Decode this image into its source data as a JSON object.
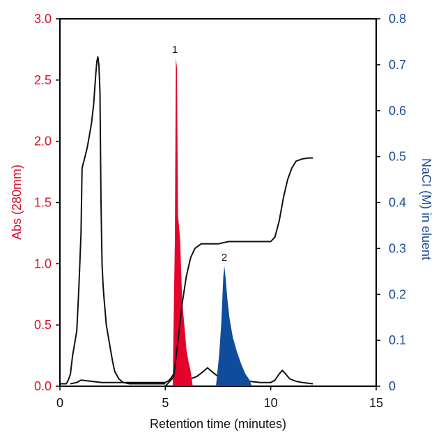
{
  "chart_data": {
    "type": "line",
    "xlabel": "Retention time (minutes)",
    "ylabel_left": "Abs (280mm)",
    "ylabel_right": "NaCI (M) in eluent",
    "xlim": [
      0,
      15
    ],
    "ylim_left": [
      0,
      3.0
    ],
    "ylim_right": [
      0,
      0.8
    ],
    "x_ticks": [
      "0",
      "5",
      "10",
      "15"
    ],
    "y_left_ticks": [
      "0.0",
      "0.5",
      "1.0",
      "1.5",
      "2.0",
      "2.5",
      "3.0"
    ],
    "y_right_ticks": [
      "0",
      "0.1",
      "0.2",
      "0.3",
      "0.4",
      "0.5",
      "0.6",
      "0.7",
      "0.8"
    ],
    "colors": {
      "left_axis": "#d7102b",
      "right_axis": "#1a4e96",
      "trace": "#111111",
      "peak1": "#e4032b",
      "peak2": "#0f4c9c"
    },
    "grid": false,
    "series": [
      {
        "axis": "left",
        "style": "line",
        "x": [
          0,
          0.3,
          0.4,
          0.5,
          0.6,
          0.8,
          0.9,
          1.0,
          1.05,
          1.2,
          1.3,
          1.4,
          1.5,
          1.6,
          1.65,
          1.7,
          1.75,
          1.8,
          1.85,
          1.9,
          1.95,
          2.0,
          2.05,
          2.1,
          2.2,
          2.3,
          2.4,
          2.5,
          2.6,
          2.8,
          3.0,
          3.3,
          3.6,
          4.0,
          5.0
        ],
        "y": [
          0.02,
          0.02,
          0.05,
          0.1,
          0.25,
          0.45,
          0.8,
          1.25,
          1.78,
          1.88,
          1.95,
          2.05,
          2.15,
          2.3,
          2.42,
          2.55,
          2.65,
          2.69,
          2.62,
          2.4,
          1.5,
          1.0,
          0.82,
          0.7,
          0.5,
          0.4,
          0.3,
          0.2,
          0.12,
          0.06,
          0.03,
          0.02,
          0.02,
          0.02,
          0.02
        ]
      },
      {
        "axis": "left",
        "style": "line",
        "x": [
          0.5,
          0.8,
          1.0,
          1.5,
          2.0,
          3.0,
          4.0,
          5.0,
          5.2,
          5.4,
          5.5,
          5.6,
          5.8,
          6.0,
          6.2,
          6.5,
          6.8,
          7.0,
          7.2,
          7.5,
          7.8,
          8.0,
          8.5,
          9.0,
          9.5,
          10.0,
          10.2,
          10.4,
          10.55,
          10.7,
          10.9,
          11.2,
          11.5,
          12.0
        ],
        "y": [
          0.02,
          0.03,
          0.05,
          0.04,
          0.03,
          0.03,
          0.03,
          0.03,
          0.05,
          0.1,
          0.2,
          0.3,
          0.2,
          0.1,
          0.06,
          0.08,
          0.12,
          0.15,
          0.12,
          0.08,
          0.06,
          0.05,
          0.04,
          0.04,
          0.03,
          0.03,
          0.05,
          0.1,
          0.13,
          0.1,
          0.06,
          0.04,
          0.03,
          0.02
        ]
      },
      {
        "axis": "left",
        "style": "fill",
        "label": "1",
        "x": [
          5.35,
          5.45,
          5.5,
          5.55,
          5.6,
          5.7,
          5.8,
          5.9,
          6.0,
          6.1,
          6.2,
          6.3
        ],
        "y": [
          0,
          1.2,
          2.68,
          2.6,
          1.4,
          1.2,
          0.7,
          0.5,
          0.3,
          0.2,
          0.12,
          0
        ]
      },
      {
        "axis": "left",
        "style": "fill",
        "label": "2",
        "x": [
          7.4,
          7.55,
          7.65,
          7.75,
          7.8,
          7.85,
          7.95,
          8.05,
          8.2,
          8.4,
          8.6,
          8.8,
          9.0,
          9.1
        ],
        "y": [
          0,
          0.25,
          0.5,
          0.9,
          0.98,
          0.9,
          0.7,
          0.55,
          0.4,
          0.28,
          0.18,
          0.1,
          0.05,
          0
        ]
      },
      {
        "axis": "right",
        "style": "line",
        "x": [
          0,
          5.0,
          5.4,
          5.6,
          5.8,
          6.0,
          6.2,
          6.4,
          6.7,
          7.0,
          7.5,
          8.0,
          9.0,
          10.0,
          10.2,
          10.4,
          10.6,
          10.8,
          11.0,
          11.2,
          11.5,
          11.8,
          12.0
        ],
        "y": [
          0.0,
          0.0,
          0.02,
          0.1,
          0.18,
          0.24,
          0.28,
          0.3,
          0.31,
          0.31,
          0.31,
          0.315,
          0.315,
          0.315,
          0.325,
          0.36,
          0.41,
          0.45,
          0.475,
          0.49,
          0.495,
          0.497,
          0.497
        ]
      }
    ]
  },
  "peak_labels": [
    "1",
    "2"
  ]
}
